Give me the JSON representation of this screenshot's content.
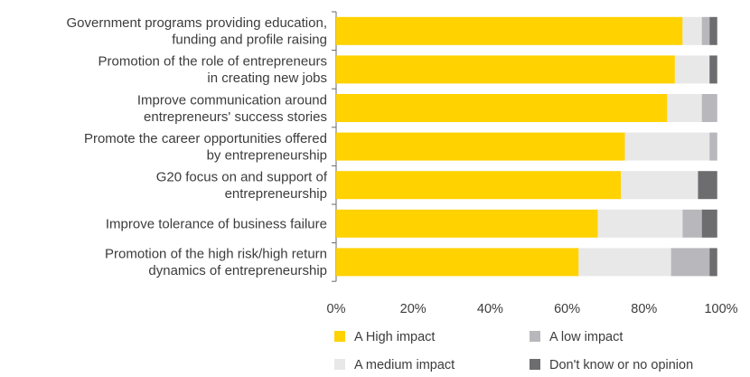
{
  "chart_data": {
    "type": "bar",
    "orientation": "horizontal",
    "stacked": true,
    "categories": [
      [
        "Government programs providing education,",
        "funding and profile raising"
      ],
      [
        "Promotion of the role of entrepreneurs",
        "in creating new jobs"
      ],
      [
        "Improve communication around",
        "entrepreneurs' success stories"
      ],
      [
        "Promote the career opportunities offered",
        "by entrepreneurship"
      ],
      [
        "G20 focus on and support of",
        "entrepreneurship"
      ],
      [
        "Improve tolerance of business failure"
      ],
      [
        "Promotion of the high risk/high return",
        "dynamics of entrepreneurship"
      ]
    ],
    "series": [
      {
        "name": "A High impact",
        "color": "#ffd200",
        "values": [
          90,
          88,
          86,
          75,
          74,
          68,
          63
        ]
      },
      {
        "name": "A medium impact",
        "color": "#e8e8e8",
        "values": [
          5,
          9,
          9,
          22,
          20,
          22,
          24
        ]
      },
      {
        "name": "A low impact",
        "color": "#b8b8bc",
        "values": [
          2,
          0,
          4,
          2,
          0,
          5,
          10
        ]
      },
      {
        "name": "Don't know or no opinion",
        "color": "#6d6d70",
        "values": [
          2,
          2,
          0,
          0,
          5,
          4,
          2
        ]
      }
    ],
    "xlim": [
      0,
      100
    ],
    "xticks": [
      "0%",
      "20%",
      "40%",
      "60%",
      "80%",
      "100%"
    ],
    "grid": false,
    "legend_position": "bottom"
  }
}
